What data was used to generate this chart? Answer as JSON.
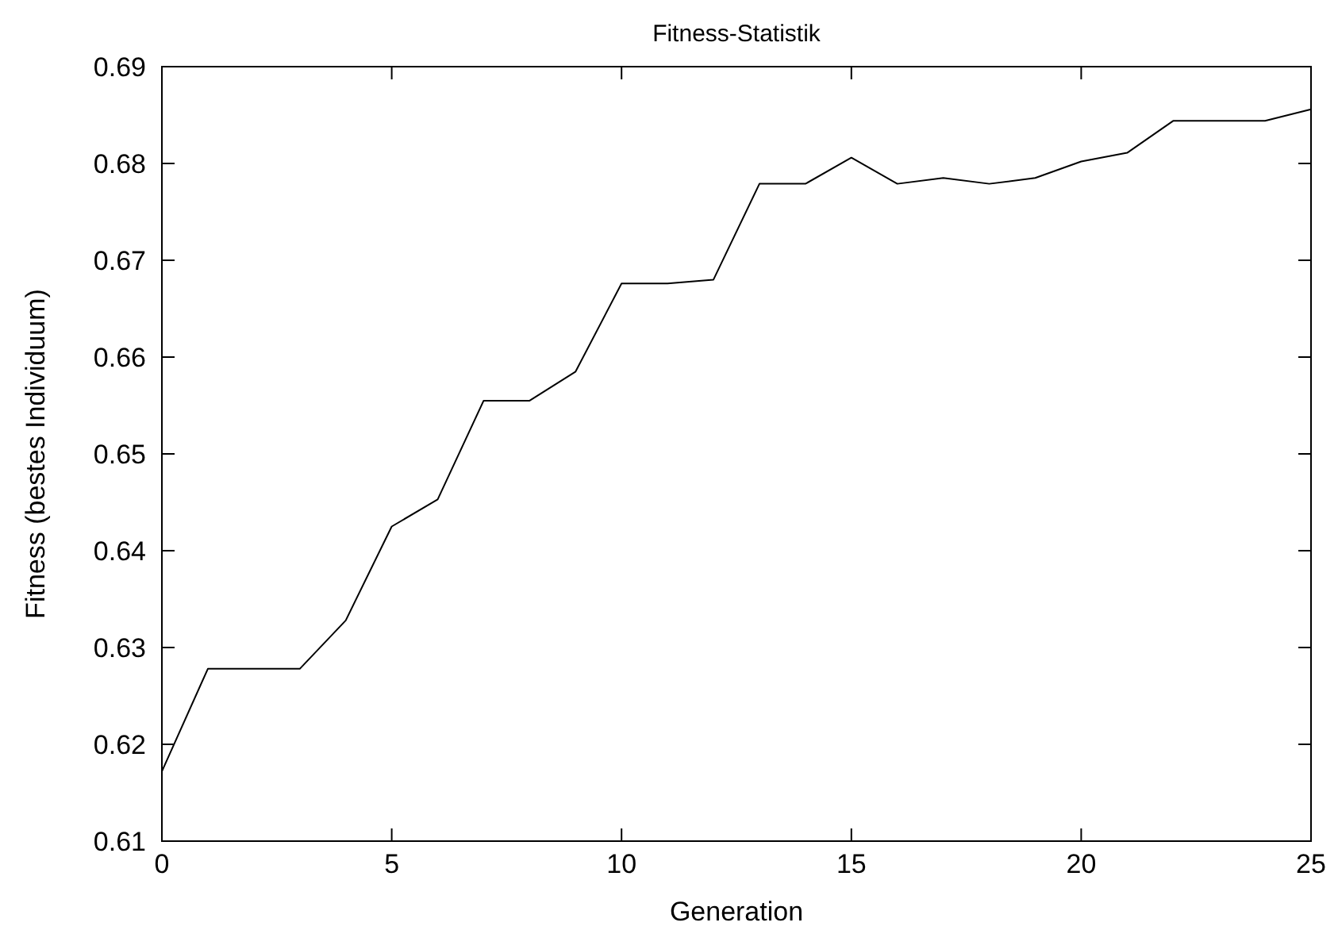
{
  "chart_data": {
    "type": "line",
    "title": "Fitness-Statistik",
    "xlabel": "Generation",
    "ylabel": "Fitness (bestes Individuum)",
    "x": [
      0,
      1,
      2,
      3,
      4,
      5,
      6,
      7,
      8,
      9,
      10,
      11,
      12,
      13,
      14,
      15,
      16,
      17,
      18,
      19,
      20,
      21,
      22,
      23,
      24,
      25
    ],
    "series": [
      {
        "color": "#000000",
        "values": [
          0.6172,
          0.6278,
          0.6278,
          0.6278,
          0.6328,
          0.6425,
          0.6453,
          0.6555,
          0.6555,
          0.6585,
          0.6676,
          0.6676,
          0.668,
          0.6779,
          0.6779,
          0.6806,
          0.6779,
          0.6785,
          0.6779,
          0.6785,
          0.6802,
          0.6811,
          0.6844,
          0.6844,
          0.6844,
          0.6856
        ]
      }
    ],
    "xlim": [
      0,
      25
    ],
    "xticks": [
      0,
      5,
      10,
      15,
      20,
      25
    ],
    "ylim": [
      0.61,
      0.69
    ],
    "yticks": [
      0.61,
      0.62,
      0.63,
      0.64,
      0.65,
      0.66,
      0.67,
      0.68,
      0.69
    ],
    "grid": false,
    "marker": "none",
    "line_style": "solid"
  }
}
